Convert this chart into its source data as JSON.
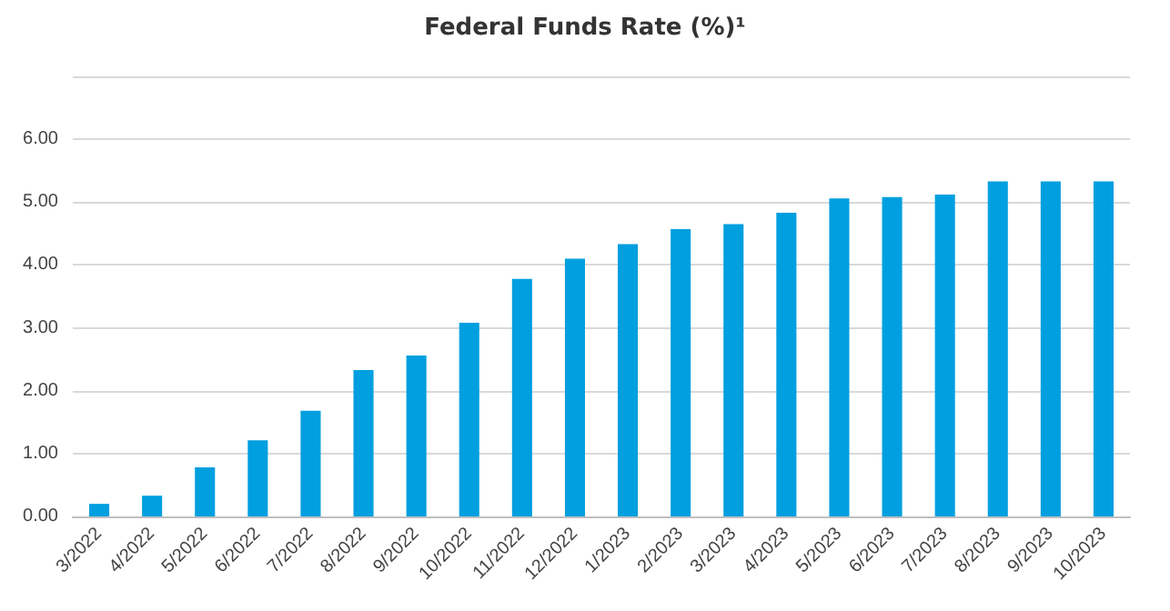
{
  "chart_data": {
    "type": "bar",
    "title": "Federal Funds Rate (%)¹",
    "categories": [
      "3/2022",
      "4/2022",
      "5/2022",
      "6/2022",
      "7/2022",
      "8/2022",
      "9/2022",
      "10/2022",
      "11/2022",
      "12/2022",
      "1/2023",
      "2/2023",
      "3/2023",
      "4/2023",
      "5/2023",
      "6/2023",
      "7/2023",
      "8/2023",
      "9/2023",
      "10/2023"
    ],
    "values": [
      0.2,
      0.33,
      0.78,
      1.21,
      1.68,
      2.33,
      2.56,
      3.08,
      3.78,
      4.1,
      4.33,
      4.57,
      4.65,
      4.83,
      5.06,
      5.08,
      5.12,
      5.33,
      5.33,
      5.33
    ],
    "color": "#009fdf",
    "ylim": [
      0,
      7
    ],
    "yticks": [
      {
        "value": 0,
        "label": "0.00"
      },
      {
        "value": 1,
        "label": "1.00"
      },
      {
        "value": 2,
        "label": "2.00"
      },
      {
        "value": 3,
        "label": "3.00"
      },
      {
        "value": 4,
        "label": "4.00"
      },
      {
        "value": 5,
        "label": "5.00"
      },
      {
        "value": 6,
        "label": "6.00"
      },
      {
        "value": 7,
        "label": null
      }
    ],
    "grid": "y"
  }
}
